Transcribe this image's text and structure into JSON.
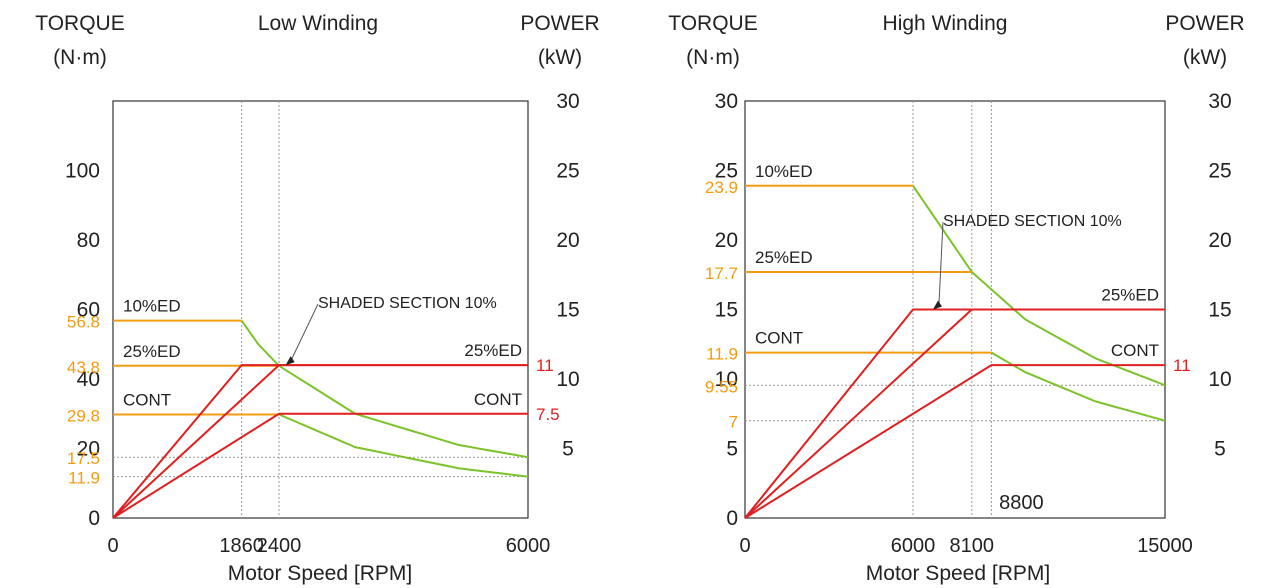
{
  "chart_data": [
    {
      "type": "line",
      "title": "Low Winding",
      "header_left": [
        "TORQUE",
        "(N·m)"
      ],
      "header_right": [
        "POWER",
        "(kW)"
      ],
      "xlabel": "Motor Speed [RPM]",
      "x_ticks": [
        "0",
        "1860",
        "2400",
        "6000"
      ],
      "xlim": [
        0,
        6000
      ],
      "y_left_ticks": [
        "0",
        "20",
        "40",
        "60",
        "80",
        "100"
      ],
      "y_left_lim": [
        0,
        120
      ],
      "y_left_highlight_labels": [
        "56.8",
        "43.8",
        "29.8",
        "17.5",
        "11.9"
      ],
      "y_right_ticks": [
        "5",
        "10",
        "15",
        "20",
        "25",
        "30"
      ],
      "y_right_lim": [
        0,
        30
      ],
      "y_right_highlight_labels": [
        "11",
        "7.5"
      ],
      "colors": {
        "torque": "#f39c12",
        "power": "#e02020",
        "curve": "#7cc22a",
        "highlight_text": "#f39c12",
        "power_text": "#e02020"
      },
      "torque_lines": [
        {
          "label": "10%ED",
          "torque": 56.8,
          "x": [
            0,
            1860
          ]
        },
        {
          "label": "25%ED",
          "torque": 43.8,
          "x": [
            0,
            2400
          ]
        },
        {
          "label": "CONT",
          "torque": 29.8,
          "x": [
            0,
            2400
          ]
        }
      ],
      "power_lines": [
        {
          "label": "10%ED",
          "points": [
            [
              0,
              0
            ],
            [
              1860,
              11
            ],
            [
              6000,
              11
            ]
          ]
        },
        {
          "label": "25%ED",
          "right_label": "25%ED",
          "points": [
            [
              0,
              0
            ],
            [
              2400,
              11
            ],
            [
              6000,
              11
            ]
          ]
        },
        {
          "label": "CONT",
          "right_label": "CONT",
          "points": [
            [
              0,
              0
            ],
            [
              2400,
              7.5
            ],
            [
              6000,
              7.5
            ]
          ]
        }
      ],
      "constant_power_curves": [
        {
          "points": [
            [
              1860,
              56.8
            ],
            [
              2100,
              50.0
            ],
            [
              2400,
              43.8
            ]
          ]
        },
        {
          "points": [
            [
              2400,
              43.8
            ],
            [
              3500,
              30.0
            ],
            [
              5000,
              21.0
            ],
            [
              6000,
              17.5
            ]
          ]
        },
        {
          "points": [
            [
              2400,
              29.8
            ],
            [
              3500,
              20.4
            ],
            [
              5000,
              14.3
            ],
            [
              6000,
              11.9
            ]
          ]
        }
      ],
      "guide_lines_x": [
        1860,
        2400
      ],
      "guide_lines_y": [
        17.5,
        11.9
      ],
      "annotation": "SHADED SECTION 10%"
    },
    {
      "type": "line",
      "title": "High Winding",
      "header_left": [
        "TORQUE",
        "(N·m)"
      ],
      "header_right": [
        "POWER",
        "(kW)"
      ],
      "xlabel": "Motor Speed [RPM]",
      "x_ticks": [
        "0",
        "6000",
        "8100",
        "15000"
      ],
      "x_extra_label": "8800",
      "xlim": [
        0,
        15000
      ],
      "y_left_ticks": [
        "0",
        "5",
        "10",
        "15",
        "20",
        "25",
        "30"
      ],
      "y_left_lim": [
        0,
        30
      ],
      "y_left_highlight_labels": [
        "23.9",
        "17.7",
        "11.9",
        "9.55",
        "7"
      ],
      "y_right_ticks": [
        "5",
        "10",
        "15",
        "20",
        "25",
        "30"
      ],
      "y_right_lim": [
        0,
        30
      ],
      "y_right_highlight_labels": [
        "11"
      ],
      "colors": {
        "torque": "#f39c12",
        "power": "#e02020",
        "curve": "#7cc22a",
        "highlight_text": "#f39c12",
        "power_text": "#e02020"
      },
      "torque_lines": [
        {
          "label": "10%ED",
          "torque": 23.9,
          "x": [
            0,
            6000
          ]
        },
        {
          "label": "25%ED",
          "torque": 17.7,
          "x": [
            0,
            8100
          ]
        },
        {
          "label": "CONT",
          "torque": 11.9,
          "x": [
            0,
            8800
          ]
        }
      ],
      "power_lines": [
        {
          "label": "10%ED",
          "points": [
            [
              0,
              0
            ],
            [
              6000,
              15
            ],
            [
              15000,
              15
            ]
          ]
        },
        {
          "label": "25%ED",
          "right_label": "25%ED",
          "points": [
            [
              0,
              0
            ],
            [
              8100,
              15
            ],
            [
              15000,
              15
            ]
          ]
        },
        {
          "label": "CONT",
          "right_label": "CONT",
          "points": [
            [
              0,
              0
            ],
            [
              8800,
              11
            ],
            [
              15000,
              11
            ]
          ]
        }
      ],
      "constant_power_curves": [
        {
          "points": [
            [
              6000,
              23.9
            ],
            [
              8100,
              17.7
            ]
          ]
        },
        {
          "points": [
            [
              8100,
              17.7
            ],
            [
              10000,
              14.3
            ],
            [
              12500,
              11.5
            ],
            [
              15000,
              9.55
            ]
          ]
        },
        {
          "points": [
            [
              8800,
              11.9
            ],
            [
              10000,
              10.5
            ],
            [
              12500,
              8.4
            ],
            [
              15000,
              7.0
            ]
          ]
        }
      ],
      "guide_lines_x": [
        6000,
        8100,
        8800
      ],
      "guide_lines_y": [
        9.55,
        7
      ],
      "annotation": "SHADED SECTION 10%"
    }
  ]
}
